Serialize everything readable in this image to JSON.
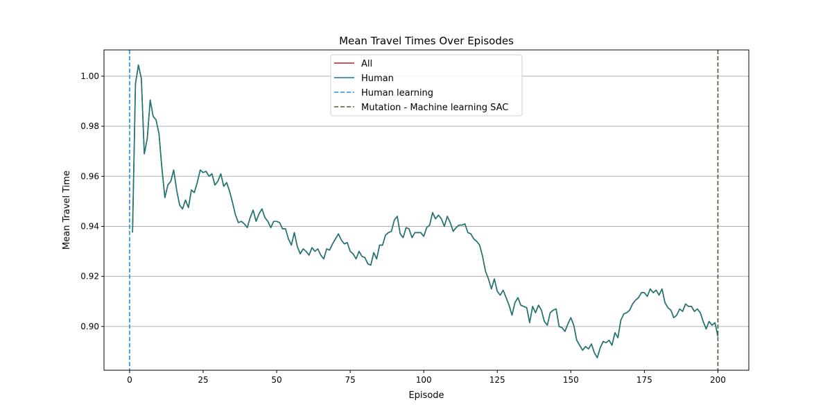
{
  "chart_data": {
    "type": "line",
    "title": "Mean Travel Times Over Episodes",
    "xlabel": "Episode",
    "ylabel": "Mean Travel Time",
    "xlim": [
      -8.7,
      210.5
    ],
    "ylim": [
      0.8825,
      1.0105
    ],
    "xticks": [
      0,
      25,
      50,
      75,
      100,
      125,
      150,
      175,
      200
    ],
    "xtick_labels": [
      "0",
      "25",
      "50",
      "75",
      "100",
      "125",
      "150",
      "175",
      "200"
    ],
    "yticks": [
      0.9,
      0.92,
      0.94,
      0.96,
      0.98,
      1.0
    ],
    "ytick_labels": [
      "0.90",
      "0.92",
      "0.94",
      "0.96",
      "0.98",
      "1.00"
    ],
    "grid": "horizontal",
    "legend_position": "top-center",
    "series": [
      {
        "name": "All",
        "color": "#b22222",
        "style": "solid",
        "x": [
          1,
          2,
          3,
          4,
          5,
          6,
          7,
          8,
          9,
          10,
          11,
          12,
          13,
          14,
          15,
          16,
          17,
          18,
          19,
          20,
          21,
          22,
          23,
          24,
          25,
          26,
          27,
          28,
          29,
          30,
          31,
          32,
          33,
          34,
          35,
          36,
          37,
          38,
          39,
          40,
          41,
          42,
          43,
          44,
          45,
          46,
          47,
          48,
          49,
          50,
          51,
          52,
          53,
          54,
          55,
          56,
          57,
          58,
          59,
          60,
          61,
          62,
          63,
          64,
          65,
          66,
          67,
          68,
          69,
          70,
          71,
          72,
          73,
          74,
          75,
          76,
          77,
          78,
          79,
          80,
          81,
          82,
          83,
          84,
          85,
          86,
          87,
          88,
          89,
          90,
          91,
          92,
          93,
          94,
          95,
          96,
          97,
          98,
          99,
          100,
          101,
          102,
          103,
          104,
          105,
          106,
          107,
          108,
          109,
          110,
          111,
          112,
          113,
          114,
          115,
          116,
          117,
          118,
          119,
          120,
          121,
          122,
          123,
          124,
          125,
          126,
          127,
          128,
          129,
          130,
          131,
          132,
          133,
          134,
          135,
          136,
          137,
          138,
          139,
          140,
          141,
          142,
          143,
          144,
          145,
          146,
          147,
          148,
          149,
          150,
          151,
          152,
          153,
          154,
          155,
          156,
          157,
          158,
          159,
          160,
          161,
          162,
          163,
          164,
          165,
          166,
          167,
          168,
          169,
          170,
          171,
          172,
          173,
          174,
          175,
          176,
          177,
          178,
          179,
          180,
          181,
          182,
          183,
          184,
          185,
          186,
          187,
          188,
          189,
          190,
          191,
          192,
          193,
          194,
          195,
          196,
          197,
          198,
          199,
          200
        ],
        "y": [
          0.9375,
          0.997,
          1.0045,
          0.999,
          0.969,
          0.975,
          0.9905,
          0.984,
          0.9825,
          0.977,
          0.963,
          0.9515,
          0.9565,
          0.958,
          0.9625,
          0.9545,
          0.9485,
          0.947,
          0.9505,
          0.9475,
          0.9545,
          0.9535,
          0.9575,
          0.9625,
          0.9615,
          0.962,
          0.96,
          0.961,
          0.9565,
          0.958,
          0.961,
          0.956,
          0.9575,
          0.954,
          0.9495,
          0.9445,
          0.9415,
          0.942,
          0.941,
          0.9395,
          0.9435,
          0.9465,
          0.942,
          0.945,
          0.947,
          0.9435,
          0.942,
          0.9395,
          0.942,
          0.942,
          0.9415,
          0.939,
          0.939,
          0.935,
          0.9325,
          0.9375,
          0.932,
          0.929,
          0.931,
          0.93,
          0.9285,
          0.9315,
          0.93,
          0.931,
          0.9285,
          0.927,
          0.931,
          0.9305,
          0.933,
          0.935,
          0.937,
          0.9345,
          0.933,
          0.9335,
          0.93,
          0.929,
          0.927,
          0.93,
          0.928,
          0.9275,
          0.925,
          0.9245,
          0.9295,
          0.927,
          0.9325,
          0.9325,
          0.9365,
          0.9375,
          0.938,
          0.9425,
          0.944,
          0.937,
          0.9355,
          0.9395,
          0.939,
          0.9355,
          0.9375,
          0.9375,
          0.9375,
          0.936,
          0.9395,
          0.9405,
          0.9455,
          0.943,
          0.9445,
          0.943,
          0.94,
          0.944,
          0.9415,
          0.938,
          0.9395,
          0.9405,
          0.9405,
          0.941,
          0.9375,
          0.937,
          0.935,
          0.934,
          0.9325,
          0.928,
          0.922,
          0.919,
          0.915,
          0.919,
          0.914,
          0.9125,
          0.9145,
          0.9115,
          0.9085,
          0.9045,
          0.9095,
          0.9115,
          0.9085,
          0.908,
          0.9075,
          0.9015,
          0.908,
          0.9055,
          0.9085,
          0.9065,
          0.902,
          0.9005,
          0.9055,
          0.9065,
          0.907,
          0.9,
          0.8995,
          0.898,
          0.901,
          0.9035,
          0.9005,
          0.8945,
          0.8925,
          0.8905,
          0.892,
          0.891,
          0.893,
          0.8895,
          0.8875,
          0.8915,
          0.894,
          0.8935,
          0.8945,
          0.8925,
          0.8975,
          0.8955,
          0.9025,
          0.905,
          0.9055,
          0.9065,
          0.909,
          0.9105,
          0.9115,
          0.9135,
          0.9135,
          0.912,
          0.915,
          0.9135,
          0.9145,
          0.9125,
          0.915,
          0.9095,
          0.9075,
          0.9065,
          0.9035,
          0.9045,
          0.907,
          0.906,
          0.909,
          0.908,
          0.908,
          0.906,
          0.907,
          0.9055,
          0.902,
          0.899,
          0.902,
          0.9005,
          0.9015,
          0.896
        ]
      },
      {
        "name": "Human",
        "color": "#177a78",
        "style": "solid",
        "x": [
          1,
          2,
          3,
          4,
          5,
          6,
          7,
          8,
          9,
          10,
          11,
          12,
          13,
          14,
          15,
          16,
          17,
          18,
          19,
          20,
          21,
          22,
          23,
          24,
          25,
          26,
          27,
          28,
          29,
          30,
          31,
          32,
          33,
          34,
          35,
          36,
          37,
          38,
          39,
          40,
          41,
          42,
          43,
          44,
          45,
          46,
          47,
          48,
          49,
          50,
          51,
          52,
          53,
          54,
          55,
          56,
          57,
          58,
          59,
          60,
          61,
          62,
          63,
          64,
          65,
          66,
          67,
          68,
          69,
          70,
          71,
          72,
          73,
          74,
          75,
          76,
          77,
          78,
          79,
          80,
          81,
          82,
          83,
          84,
          85,
          86,
          87,
          88,
          89,
          90,
          91,
          92,
          93,
          94,
          95,
          96,
          97,
          98,
          99,
          100,
          101,
          102,
          103,
          104,
          105,
          106,
          107,
          108,
          109,
          110,
          111,
          112,
          113,
          114,
          115,
          116,
          117,
          118,
          119,
          120,
          121,
          122,
          123,
          124,
          125,
          126,
          127,
          128,
          129,
          130,
          131,
          132,
          133,
          134,
          135,
          136,
          137,
          138,
          139,
          140,
          141,
          142,
          143,
          144,
          145,
          146,
          147,
          148,
          149,
          150,
          151,
          152,
          153,
          154,
          155,
          156,
          157,
          158,
          159,
          160,
          161,
          162,
          163,
          164,
          165,
          166,
          167,
          168,
          169,
          170,
          171,
          172,
          173,
          174,
          175,
          176,
          177,
          178,
          179,
          180,
          181,
          182,
          183,
          184,
          185,
          186,
          187,
          188,
          189,
          190,
          191,
          192,
          193,
          194,
          195,
          196,
          197,
          198,
          199,
          200
        ],
        "y": [
          0.9375,
          0.997,
          1.0045,
          0.999,
          0.969,
          0.975,
          0.9905,
          0.984,
          0.9825,
          0.977,
          0.963,
          0.9515,
          0.9565,
          0.958,
          0.9625,
          0.9545,
          0.9485,
          0.947,
          0.9505,
          0.9475,
          0.9545,
          0.9535,
          0.9575,
          0.9625,
          0.9615,
          0.962,
          0.96,
          0.961,
          0.9565,
          0.958,
          0.961,
          0.956,
          0.9575,
          0.954,
          0.9495,
          0.9445,
          0.9415,
          0.942,
          0.941,
          0.9395,
          0.9435,
          0.9465,
          0.942,
          0.945,
          0.947,
          0.9435,
          0.942,
          0.9395,
          0.942,
          0.942,
          0.9415,
          0.939,
          0.939,
          0.935,
          0.9325,
          0.9375,
          0.932,
          0.929,
          0.931,
          0.93,
          0.9285,
          0.9315,
          0.93,
          0.931,
          0.9285,
          0.927,
          0.931,
          0.9305,
          0.933,
          0.935,
          0.937,
          0.9345,
          0.933,
          0.9335,
          0.93,
          0.929,
          0.927,
          0.93,
          0.928,
          0.9275,
          0.925,
          0.9245,
          0.9295,
          0.927,
          0.9325,
          0.9325,
          0.9365,
          0.9375,
          0.938,
          0.9425,
          0.944,
          0.937,
          0.9355,
          0.9395,
          0.939,
          0.9355,
          0.9375,
          0.9375,
          0.9375,
          0.936,
          0.9395,
          0.9405,
          0.9455,
          0.943,
          0.9445,
          0.943,
          0.94,
          0.944,
          0.9415,
          0.938,
          0.9395,
          0.9405,
          0.9405,
          0.941,
          0.9375,
          0.937,
          0.935,
          0.934,
          0.9325,
          0.928,
          0.922,
          0.919,
          0.915,
          0.919,
          0.914,
          0.9125,
          0.9145,
          0.9115,
          0.9085,
          0.9045,
          0.9095,
          0.9115,
          0.9085,
          0.908,
          0.9075,
          0.9015,
          0.908,
          0.9055,
          0.9085,
          0.9065,
          0.902,
          0.9005,
          0.9055,
          0.9065,
          0.907,
          0.9,
          0.8995,
          0.898,
          0.901,
          0.9035,
          0.9005,
          0.8945,
          0.8925,
          0.8905,
          0.892,
          0.891,
          0.893,
          0.8895,
          0.8875,
          0.8915,
          0.894,
          0.8935,
          0.8945,
          0.8925,
          0.8975,
          0.8955,
          0.9025,
          0.905,
          0.9055,
          0.9065,
          0.909,
          0.9105,
          0.9115,
          0.9135,
          0.9135,
          0.912,
          0.915,
          0.9135,
          0.9145,
          0.9125,
          0.915,
          0.9095,
          0.9075,
          0.9065,
          0.9035,
          0.9045,
          0.907,
          0.906,
          0.909,
          0.908,
          0.908,
          0.906,
          0.907,
          0.9055,
          0.902,
          0.899,
          0.902,
          0.9005,
          0.9015,
          0.896
        ]
      }
    ],
    "vlines": [
      {
        "name": "Human learning",
        "x": 0,
        "color": "#1f8fe0",
        "style": "dashed"
      },
      {
        "name": "Mutation - Machine learning SAC",
        "x": 200,
        "color": "#4b5e2a",
        "style": "dashed"
      }
    ]
  }
}
